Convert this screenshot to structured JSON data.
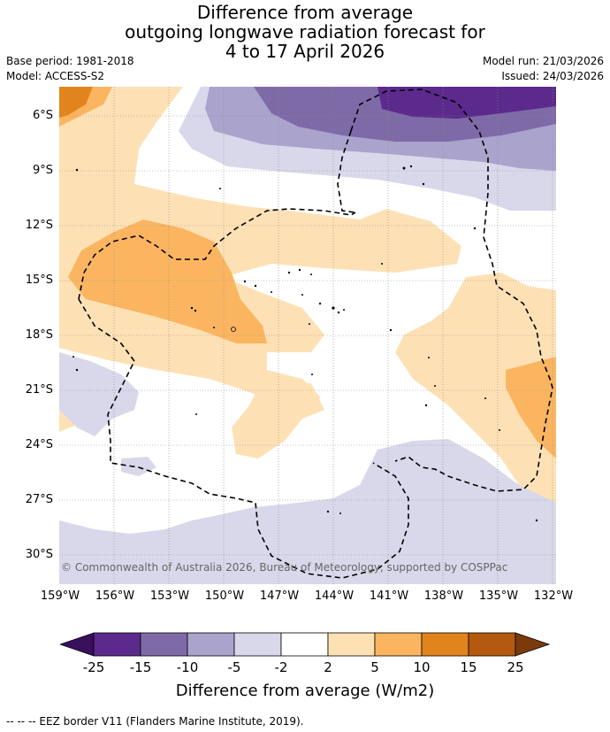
{
  "header": {
    "title_line1": "Difference from average",
    "title_line2": "outgoing longwave radiation forecast for",
    "title_line3": "4 to 17 April 2026",
    "base_period": "Base period: 1981-2018",
    "model": "Model: ACCESS-S2",
    "model_run": "Model run: 21/03/2026",
    "issued": "Issued: 24/03/2026"
  },
  "axes": {
    "lat_labels": [
      "6°S",
      "9°S",
      "12°S",
      "15°S",
      "18°S",
      "21°S",
      "24°S",
      "27°S",
      "30°S"
    ],
    "lon_labels": [
      "159°W",
      "156°W",
      "153°W",
      "150°W",
      "147°W",
      "144°W",
      "141°W",
      "138°W",
      "135°W",
      "132°W"
    ]
  },
  "map": {
    "copyright": "© Commonwealth of Australia 2026, Bureau of Meteorology, supported by COSPPac"
  },
  "colorbar": {
    "ticks": [
      "-25",
      "-15",
      "-10",
      "-5",
      "-2",
      "2",
      "5",
      "10",
      "15",
      "25"
    ],
    "title": "Difference from average (W/m2)",
    "under_color": "#3a0f5c",
    "over_color": "#7a3a0a",
    "colors": [
      "#5b2a8c",
      "#7f6aa8",
      "#aaa3cc",
      "#d8d8ea",
      "#ffffff",
      "#fde1b5",
      "#fbb561",
      "#e2841c",
      "#b45a0e"
    ]
  },
  "legend": {
    "text": "--  --  -- EEZ border V11 (Flanders Marine Institute, 2019)."
  }
}
